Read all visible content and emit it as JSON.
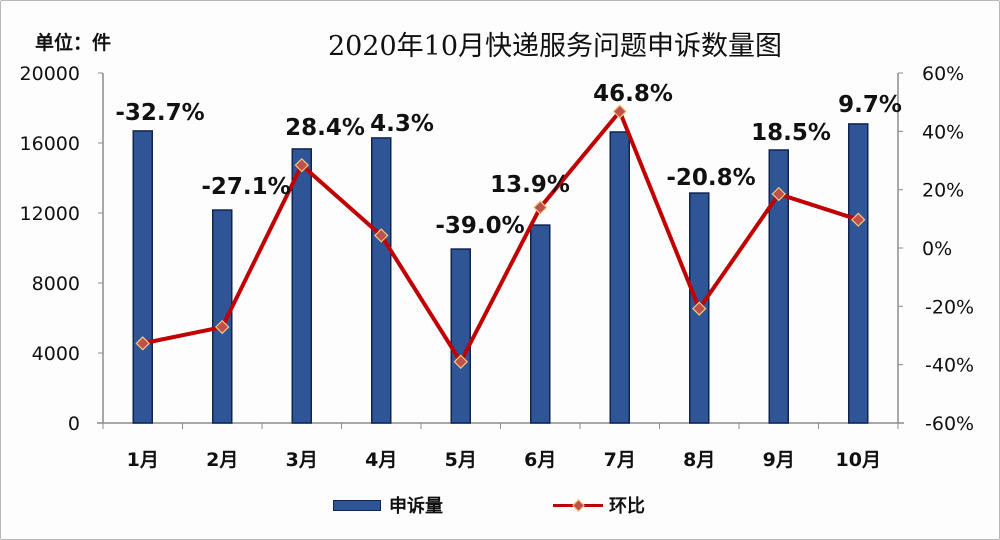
{
  "header": {
    "unit_label": "单位：件",
    "title": "2020年10月快递服务问题申诉数量图"
  },
  "legend": {
    "bar_label": "申诉量",
    "line_label": "环比"
  },
  "colors": {
    "bar_fill": "#2f5597",
    "bar_stroke": "#0f2552",
    "line": "#c00000",
    "marker": "#c0504d",
    "marker_stroke": "#f2c97a",
    "axis": "#8c8c8c"
  },
  "chart_data": {
    "type": "bar+line",
    "title": "2020年10月快递服务问题申诉数量图",
    "unit": "单位：件",
    "categories": [
      "1月",
      "2月",
      "3月",
      "4月",
      "5月",
      "6月",
      "7月",
      "8月",
      "9月",
      "10月"
    ],
    "series": [
      {
        "name": "申诉量",
        "type": "bar",
        "axis": "left",
        "values": [
          16690,
          12170,
          15660,
          16290,
          9940,
          11310,
          16630,
          13140,
          15600,
          17090
        ]
      },
      {
        "name": "环比",
        "type": "line",
        "axis": "right",
        "values": [
          -32.7,
          -27.1,
          28.4,
          4.3,
          -39.0,
          13.9,
          46.8,
          -20.8,
          18.5,
          9.7
        ],
        "labels": [
          "-32.7%",
          "-27.1%",
          "28.4%",
          "4.3%",
          "-39.0%",
          "13.9%",
          "46.8%",
          "-20.8%",
          "18.5%",
          "9.7%"
        ]
      }
    ],
    "left_axis": {
      "min": 0,
      "max": 20000,
      "ticks": [
        "0",
        "4000",
        "8000",
        "12000",
        "16000",
        "20000"
      ]
    },
    "right_axis": {
      "min": -60,
      "max": 60,
      "ticks": [
        "-60%",
        "-40%",
        "-20%",
        "0%",
        "20%",
        "40%",
        "60%"
      ]
    },
    "grid": false,
    "legend_position": "bottom"
  }
}
